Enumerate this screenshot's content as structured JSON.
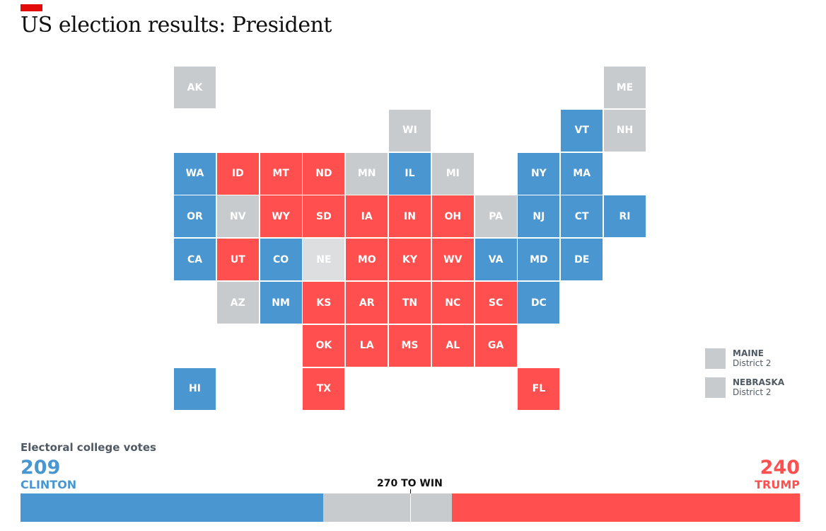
{
  "header": {
    "title": "US election results: President"
  },
  "colors": {
    "clinton": "#4a96d0",
    "trump": "#ff4f4f",
    "undecided": "#c8cbce",
    "undecided_light": "#dcdedf"
  },
  "states": [
    {
      "abbr": "AK",
      "status": "undecided"
    },
    {
      "abbr": "ME",
      "status": "undecided"
    },
    {
      "abbr": "WI",
      "status": "undecided"
    },
    {
      "abbr": "VT",
      "status": "clinton"
    },
    {
      "abbr": "NH",
      "status": "undecided"
    },
    {
      "abbr": "WA",
      "status": "clinton"
    },
    {
      "abbr": "ID",
      "status": "trump"
    },
    {
      "abbr": "MT",
      "status": "trump"
    },
    {
      "abbr": "ND",
      "status": "trump"
    },
    {
      "abbr": "MN",
      "status": "undecided"
    },
    {
      "abbr": "IL",
      "status": "clinton"
    },
    {
      "abbr": "MI",
      "status": "undecided"
    },
    {
      "abbr": "NY",
      "status": "clinton"
    },
    {
      "abbr": "MA",
      "status": "clinton"
    },
    {
      "abbr": "OR",
      "status": "clinton"
    },
    {
      "abbr": "NV",
      "status": "undecided"
    },
    {
      "abbr": "WY",
      "status": "trump"
    },
    {
      "abbr": "SD",
      "status": "trump"
    },
    {
      "abbr": "IA",
      "status": "trump"
    },
    {
      "abbr": "IN",
      "status": "trump"
    },
    {
      "abbr": "OH",
      "status": "trump"
    },
    {
      "abbr": "PA",
      "status": "undecided"
    },
    {
      "abbr": "NJ",
      "status": "clinton"
    },
    {
      "abbr": "CT",
      "status": "clinton"
    },
    {
      "abbr": "RI",
      "status": "clinton"
    },
    {
      "abbr": "CA",
      "status": "clinton"
    },
    {
      "abbr": "UT",
      "status": "trump"
    },
    {
      "abbr": "CO",
      "status": "clinton"
    },
    {
      "abbr": "NE",
      "status": "undecided_light"
    },
    {
      "abbr": "MO",
      "status": "trump"
    },
    {
      "abbr": "KY",
      "status": "trump"
    },
    {
      "abbr": "WV",
      "status": "trump"
    },
    {
      "abbr": "VA",
      "status": "clinton"
    },
    {
      "abbr": "MD",
      "status": "clinton"
    },
    {
      "abbr": "DE",
      "status": "clinton"
    },
    {
      "abbr": "AZ",
      "status": "undecided"
    },
    {
      "abbr": "NM",
      "status": "clinton"
    },
    {
      "abbr": "KS",
      "status": "trump"
    },
    {
      "abbr": "AR",
      "status": "trump"
    },
    {
      "abbr": "TN",
      "status": "trump"
    },
    {
      "abbr": "NC",
      "status": "trump"
    },
    {
      "abbr": "SC",
      "status": "trump"
    },
    {
      "abbr": "DC",
      "status": "clinton"
    },
    {
      "abbr": "OK",
      "status": "trump"
    },
    {
      "abbr": "LA",
      "status": "trump"
    },
    {
      "abbr": "MS",
      "status": "trump"
    },
    {
      "abbr": "AL",
      "status": "trump"
    },
    {
      "abbr": "GA",
      "status": "trump"
    },
    {
      "abbr": "HI",
      "status": "clinton"
    },
    {
      "abbr": "TX",
      "status": "trump"
    },
    {
      "abbr": "FL",
      "status": "trump"
    }
  ],
  "legend": [
    {
      "name": "MAINE",
      "sub": "District 2"
    },
    {
      "name": "NEBRASKA",
      "sub": "District 2"
    }
  ],
  "votes": {
    "label": "Electoral college votes",
    "clinton_votes": "209",
    "clinton_name": "CLINTON",
    "trump_votes": "240",
    "trump_name": "TRUMP",
    "to_win": "270 TO WIN",
    "total": 538,
    "clinton": 209,
    "trump": 240,
    "threshold": 270
  }
}
